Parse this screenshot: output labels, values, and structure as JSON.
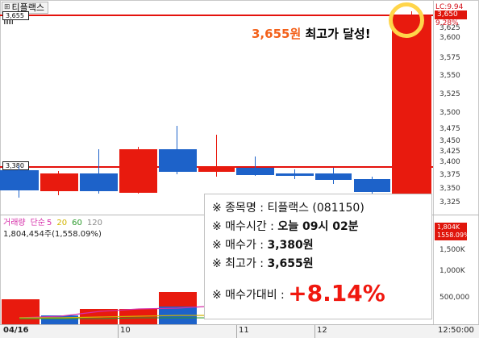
{
  "symbol": {
    "tab_label": "티플랙스",
    "tab_icon": "plus-square-icon"
  },
  "price_axis": {
    "labels": [
      "3,625",
      "3,600",
      "3,575",
      "3,550",
      "3,525",
      "3,500",
      "3,475",
      "3,450",
      "3,425",
      "3,400",
      "3,375",
      "3,350",
      "3,325"
    ],
    "lc_label": "LC:9.94",
    "current_price": "3,650",
    "change_pct": "9.28%"
  },
  "price_levels": {
    "high_label": "3,655",
    "buy_label": "3,380"
  },
  "volume_axis": {
    "labels": [
      "1,500K",
      "1,000K",
      "500,000"
    ],
    "current_volume": "1,804K",
    "current_pct": "1558.09%"
  },
  "volume_legend": {
    "name": "거래량",
    "ma_label": "단순",
    "ma_values": [
      "5",
      "20",
      "60",
      "120"
    ],
    "ma_colors": [
      "#d62ea9",
      "#d2b400",
      "#2b9a2b",
      "#8a8a8a"
    ],
    "value_line": "1,804,454주(1,558.09%)"
  },
  "time_axis": {
    "labels": [
      "04/16",
      "10",
      "11",
      "12",
      "12:50:00"
    ]
  },
  "caption": {
    "price": "3,655원",
    "text": " 최고가 달성!"
  },
  "info_box": {
    "rows": [
      {
        "label": "※ 종목명 : ",
        "value": "티플랙스 (081150)"
      },
      {
        "label": "※ 매수시간 : ",
        "value": "오늘 09시 02분"
      },
      {
        "label": "※ 매수가 : ",
        "value": "3,380원"
      },
      {
        "label": "※ 최고가 : ",
        "value": "3,655원"
      }
    ],
    "compare_label": "※ 매수가대비 : ",
    "compare_value": "+8.14%"
  },
  "colors": {
    "up": "#e81a0e",
    "down": "#1d62c9",
    "highlight_ring": "#ffd54a",
    "caption_accent": "#f3611a"
  }
}
